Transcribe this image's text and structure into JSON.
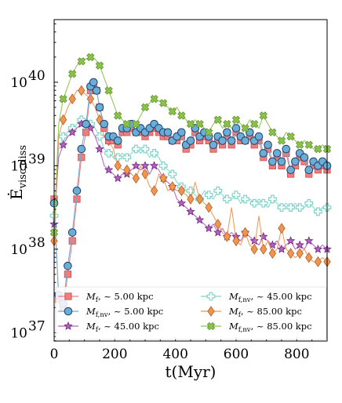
{
  "chart_data": {
    "type": "line",
    "xlabel": "t(Myr)",
    "ylabel": "Ė_visc,diss",
    "xlim": [
      0,
      900
    ],
    "ylim_log10": [
      36.9,
      40.75
    ],
    "y_scale": "log",
    "grid": false,
    "legend_position": "lower-center",
    "x_ticks": [
      0,
      200,
      400,
      600,
      800
    ],
    "x_tick_labels": [
      "0",
      "200",
      "400",
      "600",
      "800"
    ],
    "y_ticks_log10": [
      37,
      38,
      39,
      40
    ],
    "y_tick_labels": [
      {
        "base": "10",
        "exp": "37"
      },
      {
        "base": "10",
        "exp": "38"
      },
      {
        "base": "10",
        "exp": "39"
      },
      {
        "base": "10",
        "exp": "40"
      }
    ],
    "series": [
      {
        "name": "M_f, ~ 5.00 kpc",
        "color": "#f07c7c",
        "marker": "square",
        "x": [
          0,
          15,
          30,
          45,
          60,
          75,
          90,
          105,
          120,
          130,
          140,
          150,
          165,
          180,
          195,
          210,
          225,
          240,
          255,
          270,
          285,
          300,
          315,
          330,
          345,
          360,
          375,
          390,
          405,
          420,
          435,
          450,
          465,
          480,
          495,
          510,
          525,
          540,
          555,
          570,
          585,
          600,
          615,
          630,
          645,
          660,
          675,
          690,
          705,
          720,
          735,
          750,
          765,
          780,
          795,
          810,
          825,
          840,
          855,
          870,
          885,
          900
        ],
        "y": [
          38.6,
          37.4,
          37.3,
          37.7,
          38.1,
          38.6,
          39.1,
          39.4,
          39.9,
          39.95,
          39.9,
          39.7,
          39.45,
          39.3,
          39.3,
          39.25,
          39.4,
          39.4,
          39.45,
          39.4,
          39.4,
          39.35,
          39.4,
          39.45,
          39.4,
          39.35,
          39.35,
          39.3,
          39.3,
          39.35,
          39.2,
          39.25,
          39.4,
          39.3,
          39.35,
          39.3,
          39.2,
          39.3,
          39.25,
          39.35,
          39.25,
          39.4,
          39.3,
          39.3,
          39.35,
          39.25,
          39.3,
          39.1,
          39.2,
          39.0,
          39.1,
          39.0,
          39.15,
          38.9,
          39.0,
          39.1,
          39.05,
          38.9,
          39.0,
          38.95,
          39.0,
          38.95
        ]
      },
      {
        "name": "M_f,nv, ~ 5.00 kpc",
        "color": "#6aaed6",
        "marker": "circle",
        "x": [
          0,
          15,
          30,
          45,
          60,
          75,
          90,
          105,
          120,
          130,
          140,
          150,
          165,
          180,
          195,
          210,
          225,
          240,
          255,
          270,
          285,
          300,
          315,
          330,
          345,
          360,
          375,
          390,
          405,
          420,
          435,
          450,
          465,
          480,
          495,
          510,
          525,
          540,
          555,
          570,
          585,
          600,
          615,
          630,
          645,
          660,
          675,
          690,
          705,
          720,
          735,
          750,
          765,
          780,
          795,
          810,
          825,
          840,
          855,
          870,
          885,
          900
        ],
        "y": [
          38.55,
          37.45,
          37.35,
          37.8,
          38.2,
          38.7,
          39.2,
          39.5,
          39.95,
          40.0,
          39.9,
          39.7,
          39.5,
          39.35,
          39.35,
          39.3,
          39.45,
          39.45,
          39.5,
          39.4,
          39.45,
          39.4,
          39.45,
          39.5,
          39.45,
          39.4,
          39.4,
          39.3,
          39.35,
          39.4,
          39.25,
          39.3,
          39.45,
          39.35,
          39.4,
          39.35,
          39.25,
          39.35,
          39.3,
          39.4,
          39.3,
          39.45,
          39.35,
          39.3,
          39.4,
          39.3,
          39.35,
          39.15,
          39.25,
          39.05,
          39.15,
          39.05,
          39.2,
          38.95,
          39.05,
          39.15,
          39.1,
          38.95,
          39.05,
          39.0,
          39.05,
          39.0
        ]
      },
      {
        "name": "M_f, ~ 45.00 kpc",
        "color": "#b65fc4",
        "marker": "star",
        "x": [
          0,
          15,
          30,
          45,
          60,
          75,
          90,
          105,
          120,
          135,
          150,
          165,
          180,
          195,
          210,
          225,
          240,
          255,
          270,
          285,
          300,
          315,
          330,
          345,
          360,
          375,
          390,
          405,
          420,
          435,
          450,
          465,
          480,
          495,
          510,
          525,
          540,
          555,
          570,
          585,
          600,
          615,
          630,
          645,
          660,
          675,
          690,
          705,
          720,
          735,
          750,
          765,
          780,
          795,
          810,
          825,
          840,
          855,
          870,
          885,
          900
        ],
        "y": [
          38.3,
          39.1,
          39.25,
          39.35,
          39.4,
          39.45,
          39.5,
          39.5,
          39.45,
          39.35,
          39.2,
          39.0,
          38.95,
          38.9,
          38.85,
          38.9,
          38.9,
          38.95,
          39.0,
          38.95,
          39.0,
          38.9,
          39.0,
          38.95,
          38.85,
          38.8,
          38.75,
          38.6,
          38.55,
          38.5,
          38.45,
          38.4,
          38.35,
          38.3,
          38.25,
          38.3,
          38.2,
          38.25,
          38.15,
          38.2,
          38.15,
          38.1,
          38.2,
          38.15,
          38.1,
          38.05,
          38.15,
          38.1,
          38.05,
          38.1,
          38.0,
          38.05,
          38.1,
          38.0,
          38.05,
          38.0,
          38.1,
          38.05,
          38.0,
          38.05,
          38.0
        ]
      },
      {
        "name": "M_f,nv, ~ 45.00 kpc",
        "color": "#7fd3c8",
        "marker": "plus",
        "x": [
          0,
          15,
          30,
          45,
          60,
          75,
          90,
          105,
          120,
          135,
          150,
          165,
          180,
          195,
          210,
          225,
          240,
          255,
          270,
          285,
          300,
          315,
          330,
          345,
          360,
          375,
          390,
          405,
          420,
          435,
          450,
          465,
          480,
          495,
          510,
          525,
          540,
          555,
          570,
          585,
          600,
          615,
          630,
          645,
          660,
          675,
          690,
          705,
          720,
          735,
          750,
          765,
          780,
          795,
          810,
          825,
          840,
          855,
          870,
          885,
          900
        ],
        "y": [
          38.4,
          39.2,
          39.35,
          39.4,
          39.45,
          39.5,
          39.55,
          39.55,
          39.5,
          39.45,
          39.35,
          39.2,
          39.15,
          39.1,
          39.1,
          39.15,
          39.1,
          39.15,
          39.2,
          39.15,
          39.2,
          39.1,
          39.15,
          39.1,
          39.0,
          38.95,
          38.9,
          38.8,
          38.75,
          38.7,
          38.7,
          38.65,
          38.6,
          38.7,
          38.65,
          38.6,
          38.7,
          38.65,
          38.6,
          38.6,
          38.65,
          38.55,
          38.6,
          38.6,
          38.55,
          38.6,
          38.55,
          38.5,
          38.6,
          38.55,
          38.5,
          38.55,
          38.5,
          38.55,
          38.5,
          38.5,
          38.55,
          38.5,
          38.45,
          38.5,
          38.5
        ]
      },
      {
        "name": "M_f, ~ 85.00 kpc",
        "color": "#f0954f",
        "marker": "diamond",
        "x": [
          0,
          15,
          30,
          45,
          60,
          75,
          90,
          105,
          120,
          135,
          150,
          165,
          180,
          195,
          210,
          225,
          240,
          255,
          270,
          285,
          300,
          315,
          330,
          345,
          360,
          375,
          390,
          405,
          420,
          435,
          450,
          465,
          480,
          495,
          510,
          525,
          540,
          555,
          570,
          585,
          600,
          615,
          630,
          645,
          660,
          675,
          690,
          705,
          720,
          735,
          750,
          765,
          780,
          795,
          810,
          825,
          840,
          855,
          870,
          885,
          900
        ],
        "y": [
          38.1,
          39.35,
          39.55,
          39.7,
          39.8,
          39.9,
          39.9,
          39.85,
          39.8,
          39.7,
          39.55,
          39.35,
          39.3,
          39.2,
          39.0,
          38.95,
          38.95,
          38.9,
          38.85,
          39.0,
          38.9,
          38.75,
          38.7,
          38.9,
          38.85,
          38.7,
          38.75,
          38.7,
          38.7,
          38.65,
          38.6,
          38.8,
          38.6,
          38.55,
          38.5,
          38.4,
          38.3,
          38.2,
          38.15,
          38.5,
          38.1,
          38.05,
          38.2,
          38.05,
          38.0,
          38.4,
          38.0,
          38.1,
          37.95,
          38.0,
          38.25,
          38.0,
          37.95,
          37.9,
          37.95,
          38.0,
          37.9,
          37.85,
          37.85,
          37.9,
          37.85
        ]
      },
      {
        "name": "M_f,nv, ~ 85.00 kpc",
        "color": "#8bc34a",
        "marker": "x",
        "x": [
          0,
          15,
          30,
          45,
          60,
          75,
          90,
          105,
          120,
          135,
          150,
          165,
          180,
          195,
          210,
          225,
          240,
          255,
          270,
          285,
          300,
          315,
          330,
          345,
          360,
          375,
          390,
          405,
          420,
          435,
          450,
          465,
          480,
          495,
          510,
          525,
          540,
          555,
          570,
          585,
          600,
          615,
          630,
          645,
          660,
          675,
          690,
          705,
          720,
          735,
          750,
          765,
          780,
          795,
          810,
          825,
          840,
          855,
          870,
          885,
          900
        ],
        "y": [
          38.2,
          39.5,
          39.8,
          39.95,
          40.1,
          40.2,
          40.25,
          40.28,
          40.3,
          40.28,
          40.2,
          40.05,
          39.9,
          39.75,
          39.6,
          39.55,
          39.5,
          39.45,
          39.5,
          39.6,
          39.7,
          39.75,
          39.8,
          39.78,
          39.75,
          39.7,
          39.65,
          39.7,
          39.6,
          39.55,
          39.5,
          39.55,
          39.5,
          39.45,
          39.4,
          39.5,
          39.55,
          39.45,
          39.5,
          39.45,
          39.55,
          39.5,
          39.45,
          39.55,
          39.5,
          39.45,
          39.6,
          39.5,
          39.4,
          39.35,
          39.3,
          39.4,
          39.35,
          39.3,
          39.25,
          39.3,
          39.25,
          39.2,
          39.2,
          39.25,
          39.2
        ]
      }
    ],
    "legend": [
      {
        "label": "M",
        "sub": "f",
        "rest": ", ~ 5.00 kpc",
        "color": "#f07c7c",
        "marker": "square"
      },
      {
        "label": "M",
        "sub": "f,nv",
        "rest": ", ~ 45.00 kpc",
        "color": "#7fd3c8",
        "marker": "plus"
      },
      {
        "label": "M",
        "sub": "f,nv",
        "rest": ", ~ 5.00 kpc",
        "color": "#6aaed6",
        "marker": "circle"
      },
      {
        "label": "M",
        "sub": "f",
        "rest": ", ~ 85.00 kpc",
        "color": "#f0954f",
        "marker": "diamond"
      },
      {
        "label": "M",
        "sub": "f",
        "rest": ", ~ 45.00 kpc",
        "color": "#b65fc4",
        "marker": "star"
      },
      {
        "label": "M",
        "sub": "f,nv",
        "rest": ", ~ 85.00 kpc",
        "color": "#8bc34a",
        "marker": "x"
      }
    ]
  }
}
